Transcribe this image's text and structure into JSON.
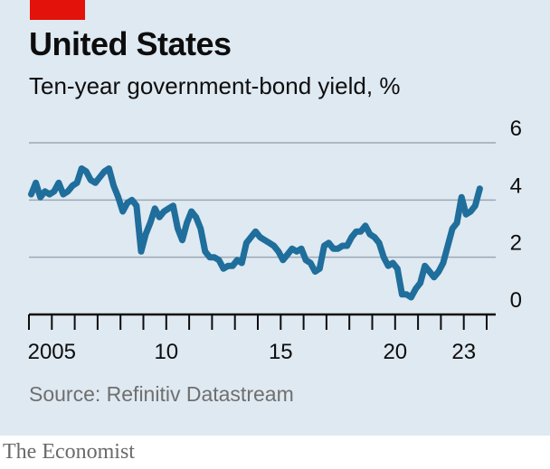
{
  "header": {
    "title": "United States",
    "subtitle": "Ten-year government-bond yield, %"
  },
  "footer": {
    "source": "Source: Refinitiv Datastream",
    "brand": "The Economist"
  },
  "colors": {
    "background": "#dfe9f1",
    "line": "#1f6e9c",
    "accent": "#e3120b",
    "gridline": "#9aa9b6"
  },
  "chart_data": {
    "type": "line",
    "title": "United States",
    "subtitle": "Ten-year government-bond yield, %",
    "xlabel": "",
    "ylabel": "",
    "ylim": [
      0,
      6
    ],
    "xlim": [
      2004.0,
      2024.0
    ],
    "y_ticks": [
      0,
      2,
      4,
      6
    ],
    "y_tick_labels": [
      "0",
      "2",
      "4",
      "6"
    ],
    "y_axis_position": "right",
    "x_tick_labels": [
      {
        "value": 2005,
        "label": "2005"
      },
      {
        "value": 2010,
        "label": "10"
      },
      {
        "value": 2015,
        "label": "15"
      },
      {
        "value": 2020,
        "label": "20"
      },
      {
        "value": 2023,
        "label": "23"
      }
    ],
    "grid": "horizontal",
    "series": [
      {
        "x": [
          2004.1,
          2004.3,
          2004.5,
          2004.7,
          2004.9,
          2005.1,
          2005.3,
          2005.5,
          2005.7,
          2005.9,
          2006.1,
          2006.3,
          2006.5,
          2006.7,
          2006.9,
          2007.1,
          2007.3,
          2007.5,
          2007.7,
          2007.9,
          2008.1,
          2008.3,
          2008.5,
          2008.7,
          2008.9,
          2009.1,
          2009.3,
          2009.5,
          2009.7,
          2009.9,
          2010.1,
          2010.3,
          2010.5,
          2010.7,
          2010.9,
          2011.1,
          2011.3,
          2011.5,
          2011.7,
          2011.9,
          2012.1,
          2012.3,
          2012.5,
          2012.7,
          2012.9,
          2013.1,
          2013.3,
          2013.5,
          2013.7,
          2013.9,
          2014.1,
          2014.3,
          2014.5,
          2014.7,
          2014.9,
          2015.1,
          2015.3,
          2015.5,
          2015.7,
          2015.9,
          2016.1,
          2016.3,
          2016.5,
          2016.7,
          2016.9,
          2017.1,
          2017.3,
          2017.5,
          2017.7,
          2017.9,
          2018.1,
          2018.3,
          2018.5,
          2018.7,
          2018.9,
          2019.1,
          2019.3,
          2019.5,
          2019.7,
          2019.9,
          2020.1,
          2020.3,
          2020.5,
          2020.7,
          2020.9,
          2021.1,
          2021.3,
          2021.5,
          2021.7,
          2021.9,
          2022.1,
          2022.3,
          2022.5,
          2022.7,
          2022.9,
          2023.1,
          2023.3,
          2023.5,
          2023.7
        ],
        "values": [
          4.2,
          4.6,
          4.1,
          4.3,
          4.2,
          4.3,
          4.6,
          4.2,
          4.3,
          4.5,
          4.6,
          5.1,
          5.0,
          4.7,
          4.6,
          4.8,
          5.0,
          5.1,
          4.5,
          4.1,
          3.6,
          3.9,
          4.0,
          3.8,
          2.2,
          2.8,
          3.2,
          3.7,
          3.4,
          3.6,
          3.7,
          3.8,
          3.0,
          2.6,
          3.2,
          3.6,
          3.4,
          3.0,
          2.2,
          2.0,
          2.0,
          1.9,
          1.6,
          1.7,
          1.7,
          1.9,
          1.8,
          2.5,
          2.7,
          2.9,
          2.7,
          2.6,
          2.5,
          2.4,
          2.2,
          1.9,
          2.1,
          2.3,
          2.2,
          2.3,
          1.9,
          1.8,
          1.5,
          1.6,
          2.4,
          2.5,
          2.3,
          2.3,
          2.4,
          2.4,
          2.7,
          2.9,
          2.9,
          3.1,
          2.8,
          2.7,
          2.5,
          2.0,
          1.7,
          1.8,
          1.6,
          0.7,
          0.7,
          0.6,
          0.9,
          1.1,
          1.7,
          1.5,
          1.3,
          1.5,
          1.8,
          2.4,
          3.0,
          3.2,
          4.1,
          3.5,
          3.6,
          3.8,
          4.4
        ]
      }
    ]
  }
}
